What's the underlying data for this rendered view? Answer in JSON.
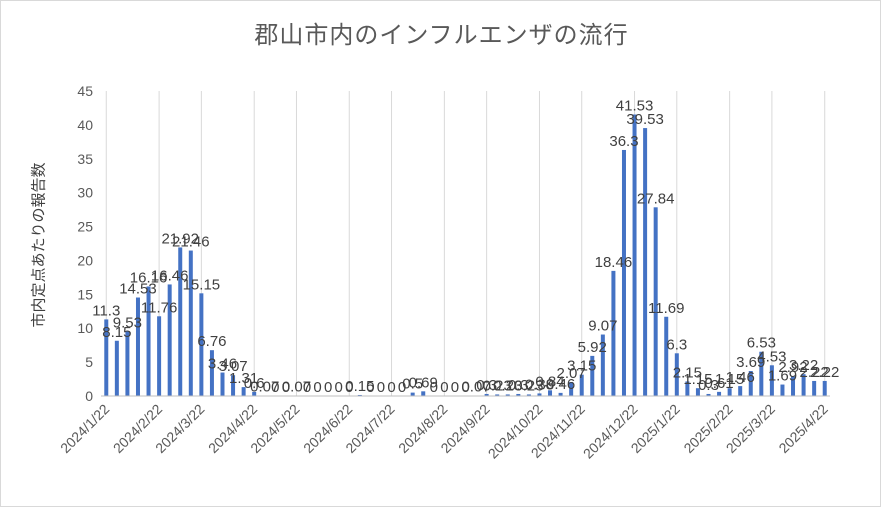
{
  "chart_data": {
    "type": "bar",
    "title": "郡山市内のインフルエンザの流行",
    "xlabel": "",
    "ylabel": "市内定点あたりの報告数",
    "ylim": [
      0,
      45
    ],
    "yticks": [
      0,
      5,
      10,
      15,
      20,
      25,
      30,
      35,
      40,
      45
    ],
    "grid": "vertical",
    "color": "#4472c4",
    "tick_labels": [
      "2024/1/22",
      "2024/2/22",
      "2024/3/22",
      "2024/4/22",
      "2024/5/22",
      "2024/6/22",
      "2024/7/22",
      "2024/8/22",
      "2024/9/22",
      "2024/10/22",
      "2024/11/22",
      "2024/12/22",
      "2025/1/22",
      "2025/2/22",
      "2025/3/22",
      "2025/4/22"
    ],
    "values": [
      11.3,
      8.15,
      9.53,
      14.53,
      16.16,
      11.76,
      16.46,
      21.92,
      21.46,
      15.15,
      6.76,
      3.46,
      3.07,
      1.31,
      0.6,
      0.07,
      0,
      0,
      0.07,
      0,
      0,
      0,
      0,
      0,
      0.15,
      0,
      0,
      0,
      0,
      0.5,
      0.69,
      0,
      0,
      0,
      0,
      0.07,
      0.3,
      0.23,
      0.23,
      0.3,
      0.23,
      0.38,
      0.84,
      0.46,
      2.07,
      3.15,
      5.92,
      9.07,
      18.46,
      36.3,
      41.53,
      39.53,
      27.84,
      11.69,
      6.3,
      2.15,
      1.15,
      0.3,
      0.61,
      1.15,
      1.46,
      3.69,
      6.53,
      4.53,
      1.69,
      2.92,
      3.22,
      2.22,
      2.22
    ],
    "labels": [
      "11.3",
      "8.15",
      "9.53",
      "14.53",
      "16.16",
      "11.76",
      "16.46",
      "21.92",
      "21.46",
      "15.15",
      "6.76",
      "3.46",
      "3.07",
      "1.31",
      "0.6",
      "0.07",
      "0",
      "0",
      "0.07",
      "0",
      "0",
      "0",
      "0",
      "0",
      "0.15",
      "0",
      "0",
      "0",
      "0",
      "0.5",
      "0.69",
      "0",
      "0",
      "0",
      "0",
      "0.07",
      "0.3",
      "0.23",
      "0.23",
      "0.3",
      "0.23",
      "0.38",
      "0.84",
      "0.46",
      "2.07",
      "3.15",
      "5.92",
      "9.07",
      "18.46",
      "36.3",
      "41.53",
      "39.53",
      "27.84",
      "11.69",
      "6.3",
      "2.15",
      "1.15",
      "0.3",
      "0.61",
      "1.15",
      "1.46",
      "3.69",
      "6.53",
      "4.53",
      "1.69",
      "2.92",
      "3.22",
      "2.22",
      "2.22"
    ]
  }
}
